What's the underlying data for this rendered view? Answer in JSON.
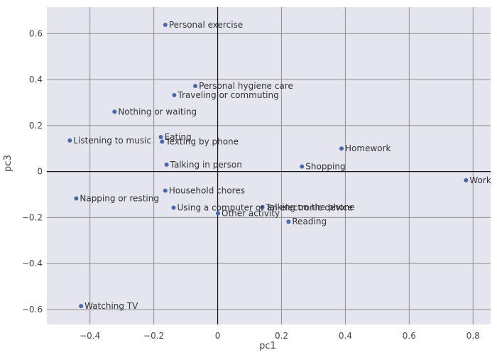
{
  "chart_data": {
    "type": "scatter",
    "xlabel": "pc1",
    "ylabel": "pc3",
    "xlim": [
      -0.535,
      0.855
    ],
    "ylim": [
      -0.665,
      0.715
    ],
    "xticks": [
      -0.4,
      -0.2,
      0,
      0.2,
      0.4,
      0.6,
      0.8
    ],
    "xtick_labels": [
      "−0.4",
      "−0.2",
      "0",
      "0.2",
      "0.4",
      "0.6",
      "0.8"
    ],
    "yticks": [
      -0.6,
      -0.4,
      -0.2,
      0,
      0.2,
      0.4,
      0.6
    ],
    "ytick_labels": [
      "−0.6",
      "−0.4",
      "−0.2",
      "0",
      "0.2",
      "0.4",
      "0.6"
    ],
    "grid": true,
    "background": "#e5e5ef",
    "grid_color": "#8f8f8f",
    "marker_color": "#4769ab",
    "points": [
      {
        "label": "Personal exercise",
        "x": -0.164,
        "y": 0.638
      },
      {
        "label": "Personal hygiene care",
        "x": -0.07,
        "y": 0.372
      },
      {
        "label": "Traveling or commuting",
        "x": -0.136,
        "y": 0.332
      },
      {
        "label": "Nothing or waiting",
        "x": -0.323,
        "y": 0.26
      },
      {
        "label": "Eating",
        "x": -0.178,
        "y": 0.15
      },
      {
        "label": "Texting by phone",
        "x": -0.174,
        "y": 0.13
      },
      {
        "label": "Listening to music",
        "x": -0.463,
        "y": 0.135
      },
      {
        "label": "Homework",
        "x": 0.388,
        "y": 0.1
      },
      {
        "label": "Talking in person",
        "x": -0.16,
        "y": 0.03
      },
      {
        "label": "Shopping",
        "x": 0.264,
        "y": 0.022
      },
      {
        "label": "Work",
        "x": 0.778,
        "y": -0.038
      },
      {
        "label": "Household chores",
        "x": -0.164,
        "y": -0.083
      },
      {
        "label": "Napping or resting",
        "x": -0.443,
        "y": -0.117
      },
      {
        "label": "Using a computer or an electronic device",
        "x": -0.138,
        "y": -0.157
      },
      {
        "label": "Talking on the phone",
        "x": 0.14,
        "y": -0.155
      },
      {
        "label": "Other activity",
        "x": 0.001,
        "y": -0.182
      },
      {
        "label": "Reading",
        "x": 0.222,
        "y": -0.218
      },
      {
        "label": "Watching TV",
        "x": -0.428,
        "y": -0.585
      }
    ]
  }
}
